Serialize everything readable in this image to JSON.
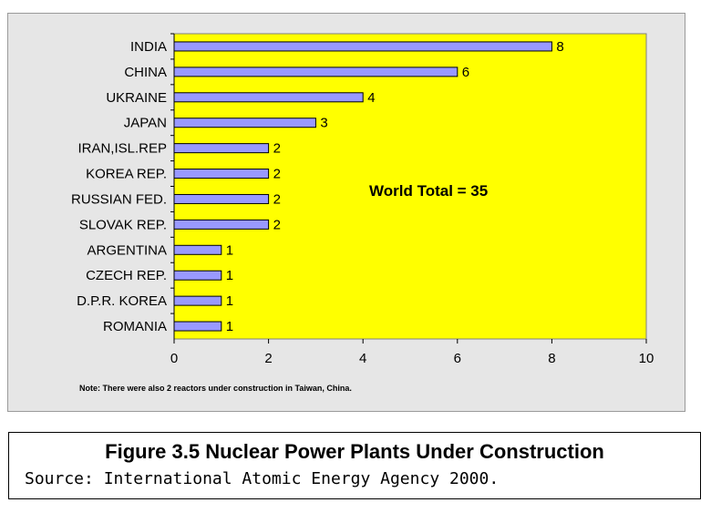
{
  "chart_data": {
    "type": "bar",
    "orientation": "horizontal",
    "categories": [
      "INDIA",
      "CHINA",
      "UKRAINE",
      "JAPAN",
      "IRAN,ISL.REP",
      "KOREA REP.",
      "RUSSIAN FED.",
      "SLOVAK REP.",
      "ARGENTINA",
      "CZECH REP.",
      "D.P.R. KOREA",
      "ROMANIA"
    ],
    "values": [
      8,
      6,
      4,
      3,
      2,
      2,
      2,
      2,
      1,
      1,
      1,
      1
    ],
    "xlim": [
      0,
      10
    ],
    "xticks": [
      0,
      2,
      4,
      6,
      8,
      10
    ],
    "grid": false,
    "annotation": "World Total = 35",
    "note": "Note: There were also 2 reactors under construction in Taiwan, China.",
    "colors": {
      "plot_bg": "#ffff00",
      "bar": "#9999ff",
      "frame_bg": "#e6e6e6"
    }
  },
  "caption": {
    "title": "Figure 3.5 Nuclear Power Plants Under Construction",
    "source": "Source: International Atomic Energy Agency 2000."
  }
}
